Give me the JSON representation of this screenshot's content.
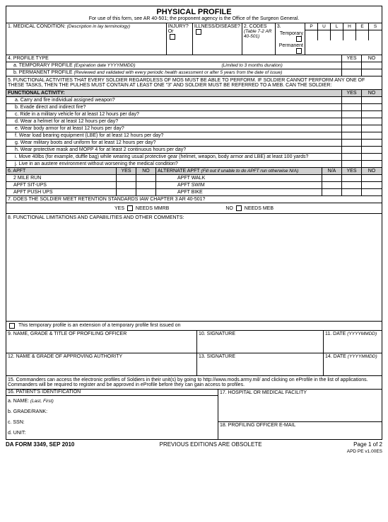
{
  "header": {
    "title": "PHYSICAL PROFILE",
    "subtitle": "For use of this form, see AR 40-501; the proponent agency is the Office of the Surgeon General."
  },
  "s1": {
    "label": "1. MEDICAL CONDITION:",
    "desc": "(Description in lay terminology)",
    "injury": "INJURY? Or",
    "illness": "ILLNESS/DISEASE?"
  },
  "s2": {
    "label": "2. CODES",
    "ref": "(Table 7-2 AR 40-501)"
  },
  "s3": {
    "label": "3.",
    "temp": "Temporary",
    "perm": "Permanent"
  },
  "pulhes": [
    "P",
    "U",
    "L",
    "H",
    "E",
    "S"
  ],
  "s4": {
    "label": "4. PROFILE TYPE",
    "yes": "YES",
    "no": "NO",
    "a": "a. TEMPORARY PROFILE",
    "a_note": "(Expiration date YYYYMMDD)",
    "a_limit": "(Limited to 3 months duration)",
    "b": "b. PERMANENT PROFILE",
    "b_note": "(Reviewed and validated with every periodic health assessment or after 5 years from the date of issue)"
  },
  "s5": "5. FUNCTIONAL ACTIVITIES THAT EVERY SOLDIER REGARDLESS OF MOS MUST BE ABLE TO PERFORM. IF SOLDIER CANNOT PERFORM ANY ONE OF THESE TASKS, THEN THE PULHES MUST CONTAIN AT LEAST ONE \"3\" AND SOLDIER MUST BE REFERRED TO A MEB. CAN THE SOLDIER:",
  "fa_header": "FUNCTIONAL ACTIVITY:",
  "fa": [
    "a. Carry and fire individual assigned weapon?",
    "b. Evade direct and indirect fire?",
    "c. Ride in a military vehicle for at least 12 hours per day?",
    "d. Wear a helmet for at least 12 hours per day?",
    "e. Wear body armor for at least 12 hours per day?",
    "f. Wear load bearing equipment (LBE) for at least 12 hours per day?",
    "g. Wear military boots and uniform for at least 12 hours per day?",
    "h. Wear protective mask and MOPP 4 for at least 2 continuous hours per day?",
    "i. Move 40lbs (for example, duffle bag) while wearing usual protective gear (helmet, weapon, body armor and LBE) at least 100 yards?",
    "j. Live in an austere environment without worsening the medical condition?"
  ],
  "s6": {
    "label": "6. APFT",
    "yes": "YES",
    "no": "NO",
    "alt": "ALTERNATE APFT",
    "alt_note": "(Fill out if unable to do APFT run otherwise N/A)",
    "na": "N/A",
    "rows": [
      "2 MILE RUN",
      "APFT SIT-UPS",
      "APFT PUSH UPS"
    ],
    "alt_rows": [
      "APFT WALK",
      "APFT SWIM",
      "APFT BIKE"
    ]
  },
  "s7": {
    "label": "7. DOES THE SOLDIER MEET RETENTION STANDARDS IAW CHAPTER 3 AR 40-501?",
    "yes": "YES",
    "mmrb": "NEEDS MMRB",
    "no": "NO",
    "meb": "NEEDS MEB"
  },
  "s8": "8. FUNCTIONAL LIMITATIONS AND CAPABILITIES AND OTHER COMMENTS:",
  "ext": "This temporary profile is an extension of a temporary profile first issued on",
  "s9": "9. NAME, GRADE & TITLE OF PROFILING OFFICER",
  "s10": "10. SIGNATURE",
  "s11": "11. DATE",
  "s11n": "(YYYYMMDD)",
  "s12": "12. NAME & GRADE OF APPROVING AUTHORITY",
  "s13": "13. SIGNATURE",
  "s14": "14. DATE",
  "s14n": "(YYYYMMDD)",
  "s15": "15. Commanders can access the electronic profiles of Soldiers in their unit(s) by going to http://www.mods.army.mil/ and clicking on eProfile in the list of applications. Commanders will be required to register and be approved in eProfile before they can gain access to profiles.",
  "s16": "16. PATIENT'S IDENTIFICATION",
  "s16a": "a. NAME:",
  "s16an": "(Last, First)",
  "s16b": "b. GRADE/RANK:",
  "s16c": "c. SSN:",
  "s16d": "d. UNIT:",
  "s17": "17. HOSPITAL OR MEDICAL FACILITY",
  "s18": "18. PROFILING OFFICER E-MAIL",
  "footer": {
    "form": "DA FORM 3349, SEP 2010",
    "prev": "PREVIOUS EDITIONS ARE OBSOLETE",
    "page": "Page 1 of 2",
    "ver": "APD PE v1.00ES"
  }
}
